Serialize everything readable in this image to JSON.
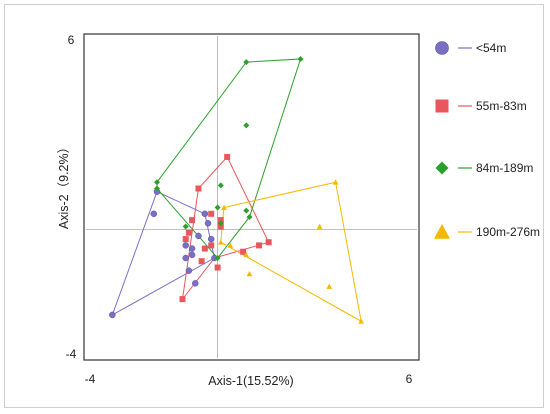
{
  "chart_data": {
    "type": "scatter",
    "xlabel": "Axis-1(15.52%)",
    "ylabel": "Axis-2（9.2%）",
    "xlim": [
      -4,
      6
    ],
    "ylim": [
      -4,
      6
    ],
    "xticks": [
      "-4",
      "6"
    ],
    "yticks": [
      "6",
      "-4"
    ],
    "grid": false,
    "reference_lines": {
      "x": 0,
      "y": 0
    },
    "legend_position": "right",
    "series": [
      {
        "name": "<54m",
        "color": "#7B6FC4",
        "marker": "circle",
        "points": [
          [
            -3.3,
            -2.7
          ],
          [
            -1.9,
            1.2
          ],
          [
            -2.0,
            0.5
          ],
          [
            -1.0,
            -0.5
          ],
          [
            -1.0,
            -0.9
          ],
          [
            -0.9,
            -1.3
          ],
          [
            -0.8,
            -0.8
          ],
          [
            -0.8,
            -0.6
          ],
          [
            -0.7,
            -1.7
          ],
          [
            -0.6,
            -0.2
          ],
          [
            -0.4,
            0.5
          ],
          [
            -0.3,
            0.2
          ],
          [
            -0.2,
            -0.3
          ],
          [
            -0.1,
            -0.9
          ]
        ],
        "hull": [
          [
            -3.3,
            -2.7
          ],
          [
            -1.9,
            1.2
          ],
          [
            -0.4,
            0.5
          ],
          [
            -0.1,
            -0.9
          ],
          [
            -0.1,
            -0.9
          ]
        ]
      },
      {
        "name": "55m-83m",
        "color": "#E8575B",
        "marker": "square",
        "points": [
          [
            -1.1,
            -2.2
          ],
          [
            -1.0,
            -0.3
          ],
          [
            -0.9,
            -0.1
          ],
          [
            -0.8,
            0.3
          ],
          [
            -0.6,
            1.3
          ],
          [
            -0.5,
            -1.0
          ],
          [
            -0.4,
            -0.6
          ],
          [
            -0.2,
            0.5
          ],
          [
            -0.2,
            -0.5
          ],
          [
            0.0,
            -1.2
          ],
          [
            0.1,
            0.3
          ],
          [
            0.1,
            0.1
          ],
          [
            0.3,
            2.3
          ],
          [
            0.8,
            -0.7
          ],
          [
            1.3,
            -0.5
          ],
          [
            1.6,
            -0.4
          ]
        ],
        "hull": [
          [
            -1.1,
            -2.2
          ],
          [
            -0.6,
            1.3
          ],
          [
            0.3,
            2.3
          ],
          [
            1.6,
            -0.4
          ],
          [
            -0.1,
            -0.9
          ]
        ]
      },
      {
        "name": "84m-189m",
        "color": "#2CA02C",
        "marker": "diamond",
        "points": [
          [
            -1.9,
            1.5
          ],
          [
            -1.9,
            1.3
          ],
          [
            -1.0,
            0.1
          ],
          [
            0.0,
            -0.9
          ],
          [
            0.0,
            0.7
          ],
          [
            0.1,
            0.2
          ],
          [
            0.1,
            1.4
          ],
          [
            0.9,
            0.6
          ],
          [
            0.9,
            3.3
          ],
          [
            0.9,
            5.3
          ],
          [
            1.0,
            0.4
          ],
          [
            2.6,
            5.4
          ]
        ],
        "hull": [
          [
            -1.9,
            1.5
          ],
          [
            0.9,
            5.3
          ],
          [
            2.6,
            5.4
          ],
          [
            1.0,
            0.4
          ],
          [
            0.0,
            -0.9
          ],
          [
            -1.9,
            1.3
          ]
        ]
      },
      {
        "name": "190m-276m",
        "color": "#F5B800",
        "marker": "triangle",
        "points": [
          [
            0.1,
            -0.4
          ],
          [
            0.2,
            0.7
          ],
          [
            0.4,
            -0.5
          ],
          [
            0.9,
            -0.8
          ],
          [
            1.0,
            -1.4
          ],
          [
            3.2,
            0.1
          ],
          [
            3.5,
            -1.8
          ],
          [
            3.7,
            1.5
          ],
          [
            4.5,
            -2.9
          ]
        ],
        "hull": [
          [
            0.2,
            0.7
          ],
          [
            3.7,
            1.5
          ],
          [
            4.5,
            -2.9
          ],
          [
            0.1,
            -0.4
          ]
        ]
      }
    ]
  }
}
